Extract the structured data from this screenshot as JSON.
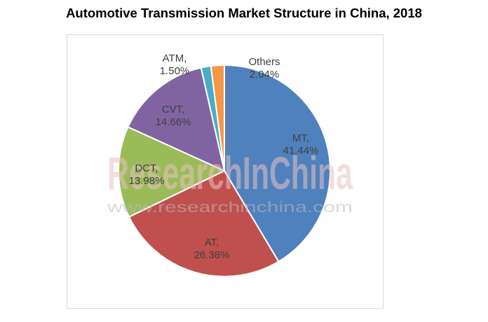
{
  "title": "Automotive Transmission Market Structure in China, 2018",
  "watermark": {
    "main": "ResearchInChina",
    "url": "www.researchinchina.com"
  },
  "chart_data": {
    "type": "pie",
    "title": "Automotive Transmission Market Structure in China, 2018",
    "start_angle_deg": 0,
    "direction": "clockwise",
    "slices": [
      {
        "name": "MT",
        "label_line1": "MT,",
        "label_line2": "41.44%",
        "value": 41.44,
        "color": "#4f81bd"
      },
      {
        "name": "AT",
        "label_line1": "AT,",
        "label_line2": "26.38%",
        "value": 26.38,
        "color": "#c0504d"
      },
      {
        "name": "DCT",
        "label_line1": "DCT,",
        "label_line2": "13.98%",
        "value": 13.98,
        "color": "#9bbb59"
      },
      {
        "name": "CVT",
        "label_line1": "CVT,",
        "label_line2": "14.66%",
        "value": 14.66,
        "color": "#8064a2"
      },
      {
        "name": "ATM",
        "label_line1": "ATM,",
        "label_line2": "1.50%",
        "value": 1.5,
        "color": "#4bacc6"
      },
      {
        "name": "Others",
        "label_line1": "Others",
        "label_line2": "2.04%",
        "value": 2.04,
        "color": "#f79646"
      }
    ]
  }
}
